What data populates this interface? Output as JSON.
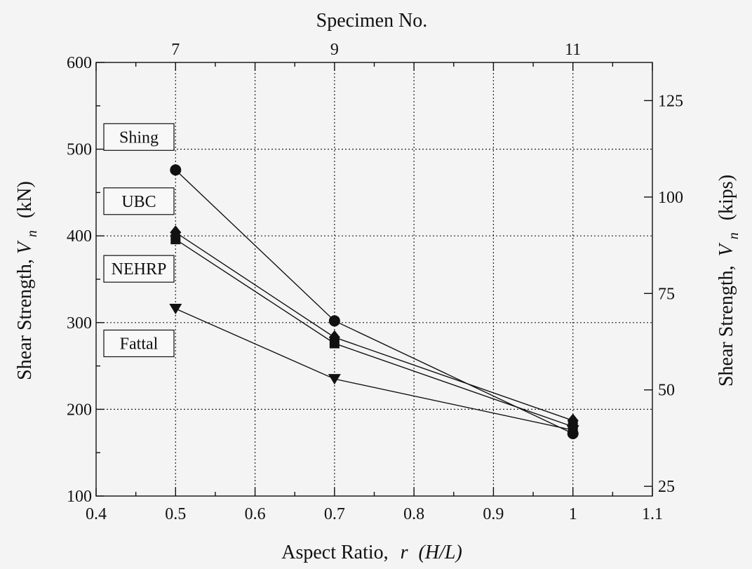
{
  "chart_data": {
    "type": "line",
    "xlabel_prefix": "Aspect Ratio,",
    "xlabel_var": "r",
    "xlabel_suffix": "(H/L)",
    "ylabel_left_prefix": "Shear Strength,",
    "ylabel_left_var": "V",
    "ylabel_left_sub": "n",
    "ylabel_left_unit": "(kN)",
    "ylabel_right_prefix": "Shear Strength,",
    "ylabel_right_var": "V",
    "ylabel_right_sub": "n",
    "ylabel_right_unit": "(kips)",
    "top_axis_label": "Specimen No.",
    "xlim": [
      0.4,
      1.1
    ],
    "ylim": [
      100,
      600
    ],
    "ylim_right": [
      22.48,
      134.89
    ],
    "x_ticks": [
      0.4,
      0.5,
      0.6,
      0.7,
      0.8,
      0.9,
      1,
      1.1
    ],
    "x_tick_labels": [
      "0.4",
      "0.5",
      "0.6",
      "0.7",
      "0.8",
      "0.9",
      "1",
      "1.1"
    ],
    "y_ticks": [
      100,
      200,
      300,
      400,
      500,
      600
    ],
    "y_tick_labels": [
      "100",
      "200",
      "300",
      "400",
      "500",
      "600"
    ],
    "y_right_ticks": [
      25,
      50,
      75,
      100,
      125
    ],
    "y_right_tick_labels": [
      "25",
      "50",
      "75",
      "100",
      "125"
    ],
    "top_ticks": [
      0.5,
      0.7,
      1.0
    ],
    "top_tick_labels": [
      "7",
      "9",
      "11"
    ],
    "grid": true,
    "x": [
      0.5,
      0.7,
      1.0
    ],
    "series": [
      {
        "marker": "circle",
        "values": [
          476,
          302,
          172
        ]
      },
      {
        "marker": "diamond",
        "values": [
          404,
          283,
          187
        ]
      },
      {
        "marker": "square",
        "values": [
          396,
          276,
          180
        ]
      },
      {
        "marker": "triangle-down",
        "values": [
          316,
          235,
          176
        ]
      }
    ],
    "annotations": [
      {
        "text": "Shing",
        "y": 514
      },
      {
        "text": "UBC",
        "y": 440
      },
      {
        "text": "NEHRP",
        "y": 362
      },
      {
        "text": "Fattal",
        "y": 276
      }
    ]
  }
}
